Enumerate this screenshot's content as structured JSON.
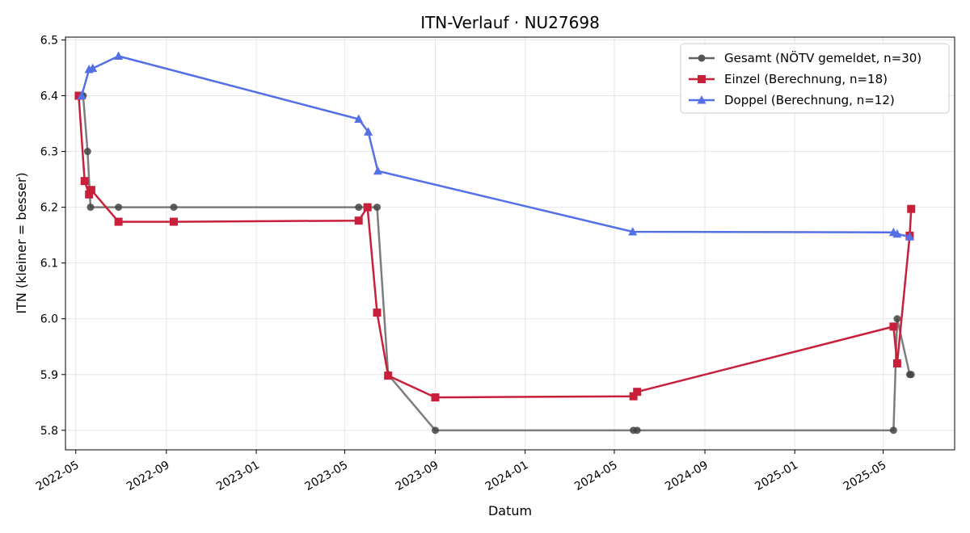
{
  "chart_data": {
    "type": "line",
    "title": "ITN-Verlauf · NU27698",
    "xlabel": "Datum",
    "ylabel": "ITN  (kleiner = besser)",
    "x_type": "date",
    "xlim": [
      "2022-04-17",
      "2025-08-06"
    ],
    "ylim": [
      5.765,
      6.505
    ],
    "x_ticks": [
      "2022-05-01",
      "2022-09-01",
      "2023-01-01",
      "2023-05-01",
      "2023-09-01",
      "2024-01-01",
      "2024-05-01",
      "2024-09-01",
      "2025-01-01",
      "2025-05-01"
    ],
    "x_tick_labels": [
      "2022-05",
      "2022-09",
      "2023-01",
      "2023-05",
      "2023-09",
      "2024-01",
      "2024-05",
      "2024-09",
      "2025-01",
      "2025-05"
    ],
    "y_ticks": [
      5.8,
      5.9,
      6.0,
      6.1,
      6.2,
      6.3,
      6.4,
      6.5
    ],
    "y_tick_labels": [
      "5.8",
      "5.9",
      "6.0",
      "6.1",
      "6.2",
      "6.3",
      "6.4",
      "6.5"
    ],
    "grid": true,
    "legend_position": "top-right",
    "series": [
      {
        "name": "Gesamt (NÖTV gemeldet, n=30)",
        "color": "#666666",
        "marker": "circle",
        "points": [
          [
            "2022-05-05",
            6.4
          ],
          [
            "2022-05-09",
            6.4
          ],
          [
            "2022-05-11",
            6.4
          ],
          [
            "2022-05-17",
            6.3
          ],
          [
            "2022-05-21",
            6.2
          ],
          [
            "2022-06-28",
            6.2
          ],
          [
            "2022-09-11",
            6.2
          ],
          [
            "2023-05-20",
            6.2
          ],
          [
            "2023-06-01",
            6.2
          ],
          [
            "2023-06-14",
            6.2
          ],
          [
            "2023-06-29",
            5.9
          ],
          [
            "2023-09-01",
            5.8
          ],
          [
            "2024-05-27",
            5.8
          ],
          [
            "2024-06-01",
            5.8
          ],
          [
            "2025-05-15",
            5.8
          ],
          [
            "2025-05-20",
            6.0
          ],
          [
            "2025-06-06",
            5.9
          ],
          [
            "2025-06-08",
            5.9
          ]
        ]
      },
      {
        "name": "Einzel (Berechnung, n=18)",
        "color": "#c8203b",
        "marker": "square",
        "points": [
          [
            "2022-05-05",
            6.4
          ],
          [
            "2022-05-13",
            6.247
          ],
          [
            "2022-05-19",
            6.223
          ],
          [
            "2022-05-22",
            6.231
          ],
          [
            "2022-06-28",
            6.174
          ],
          [
            "2022-09-11",
            6.174
          ],
          [
            "2023-05-20",
            6.176
          ],
          [
            "2023-06-01",
            6.2
          ],
          [
            "2023-06-14",
            6.011
          ],
          [
            "2023-06-29",
            5.898
          ],
          [
            "2023-09-01",
            5.859
          ],
          [
            "2024-05-27",
            5.861
          ],
          [
            "2024-06-01",
            5.869
          ],
          [
            "2025-05-15",
            5.986
          ],
          [
            "2025-05-20",
            5.92
          ],
          [
            "2025-06-06",
            6.149
          ],
          [
            "2025-06-08",
            6.197
          ]
        ]
      },
      {
        "name": "Doppel (Berechnung, n=12)",
        "color": "#5470e6",
        "marker": "triangle",
        "points": [
          [
            "2022-05-09",
            6.4
          ],
          [
            "2022-05-19",
            6.447
          ],
          [
            "2022-05-24",
            6.449
          ],
          [
            "2022-06-28",
            6.471
          ],
          [
            "2023-05-20",
            6.358
          ],
          [
            "2023-06-02",
            6.335
          ],
          [
            "2023-06-15",
            6.265
          ],
          [
            "2024-05-26",
            6.156
          ],
          [
            "2025-05-15",
            6.155
          ],
          [
            "2025-05-20",
            6.152
          ],
          [
            "2025-06-06",
            6.147
          ]
        ]
      }
    ]
  }
}
